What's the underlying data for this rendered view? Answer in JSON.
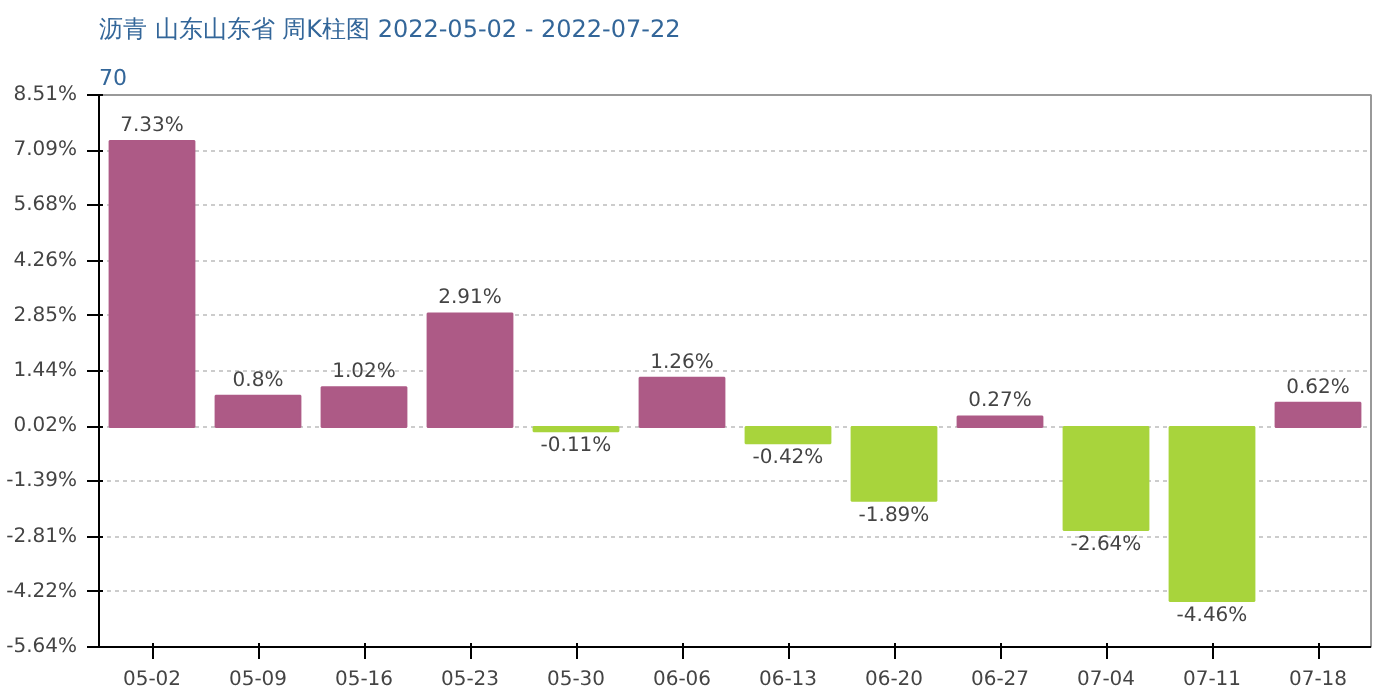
{
  "chart_data": {
    "type": "bar",
    "title": "沥青 山东山东省 周K柱图 2022-05-02 - 2022-07-22",
    "subtitle": "70",
    "categories": [
      "05-02",
      "05-09",
      "05-16",
      "05-23",
      "05-30",
      "06-06",
      "06-13",
      "06-20",
      "06-27",
      "07-04",
      "07-11",
      "07-18"
    ],
    "values": [
      7.33,
      0.8,
      1.02,
      2.91,
      -0.11,
      1.26,
      -0.42,
      -1.89,
      0.27,
      -2.64,
      -4.46,
      0.62
    ],
    "value_labels": [
      "7.33%",
      "0.8%",
      "1.02%",
      "2.91%",
      "-0.11%",
      "1.26%",
      "-0.42%",
      "-1.89%",
      "0.27%",
      "-2.64%",
      "-4.46%",
      "0.62%"
    ],
    "colors": [
      "#ad5a86",
      "#ad5a86",
      "#ad5a86",
      "#ad5a86",
      "#a8d43c",
      "#ad5a86",
      "#a8d43c",
      "#a8d43c",
      "#ad5a86",
      "#a8d43c",
      "#a8d43c",
      "#ad5a86"
    ],
    "ylim": [
      -5.64,
      8.51
    ],
    "yticks": [
      {
        "value": 8.51,
        "label": "8.51%"
      },
      {
        "value": 7.09,
        "label": "7.09%"
      },
      {
        "value": 5.68,
        "label": "5.68%"
      },
      {
        "value": 4.26,
        "label": "4.26%"
      },
      {
        "value": 2.85,
        "label": "2.85%"
      },
      {
        "value": 1.44,
        "label": "1.44%"
      },
      {
        "value": 0.02,
        "label": "0.02%"
      },
      {
        "value": -1.39,
        "label": "-1.39%"
      },
      {
        "value": -2.81,
        "label": "-2.81%"
      },
      {
        "value": -4.22,
        "label": "-4.22%"
      },
      {
        "value": -5.64,
        "label": "-5.64%"
      }
    ],
    "grid": "y"
  }
}
